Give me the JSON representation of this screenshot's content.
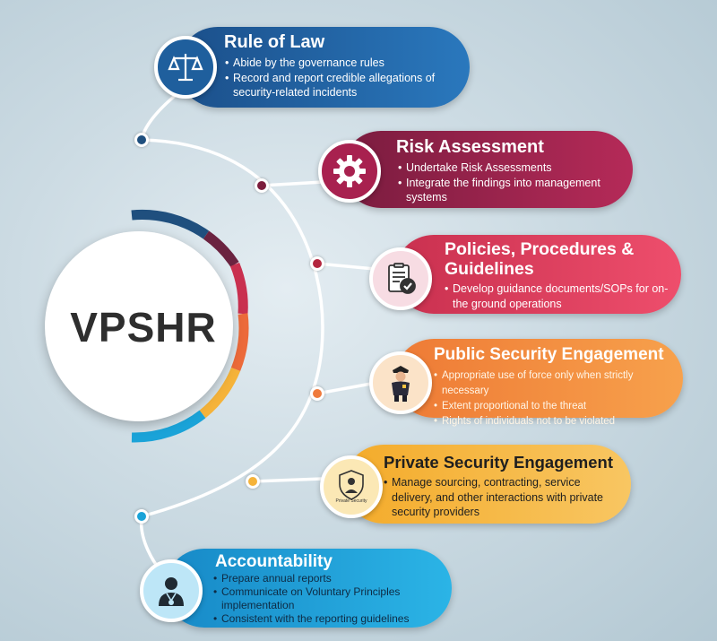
{
  "center": {
    "title": "VPSHR"
  },
  "colors": {
    "rule_of_law": "#1f6aa5",
    "risk_assessment": "#a8214f",
    "policies": "#e83f5f",
    "public_security": "#f28a3c",
    "private_security": "#f6b93b",
    "accountability": "#1aa3d8"
  },
  "items": [
    {
      "title": "Rule of Law",
      "icon": "scales-icon",
      "bullets": [
        "Abide by the governance rules",
        "Record and report credible allegations of security-related incidents"
      ]
    },
    {
      "title": "Risk Assessment",
      "icon": "gear-icon",
      "bullets": [
        "Undertake Risk Assessments",
        "Integrate the findings into management systems"
      ]
    },
    {
      "title": "Policies, Procedures & Guidelines",
      "icon": "checklist-icon",
      "bullets": [
        "Develop guidance documents/SOPs for on-the ground operations"
      ]
    },
    {
      "title": "Public Security Engagement",
      "icon": "police-officer-icon",
      "bullets": [
        "Appropriate use of force only when strictly necessary",
        "Extent proportional to the threat",
        "Rights of individuals not to be violated"
      ]
    },
    {
      "title": "Private Security Engagement",
      "icon": "private-security-icon",
      "icon_label": "Private Security",
      "bullets": [
        "Manage sourcing, contracting, service delivery, and other interactions with private security providers"
      ]
    },
    {
      "title": "Accountability",
      "icon": "user-badge-icon",
      "bullets": [
        "Prepare annual reports",
        "Communicate on Voluntary Principles implementation",
        "Consistent with the reporting guidelines"
      ]
    }
  ]
}
